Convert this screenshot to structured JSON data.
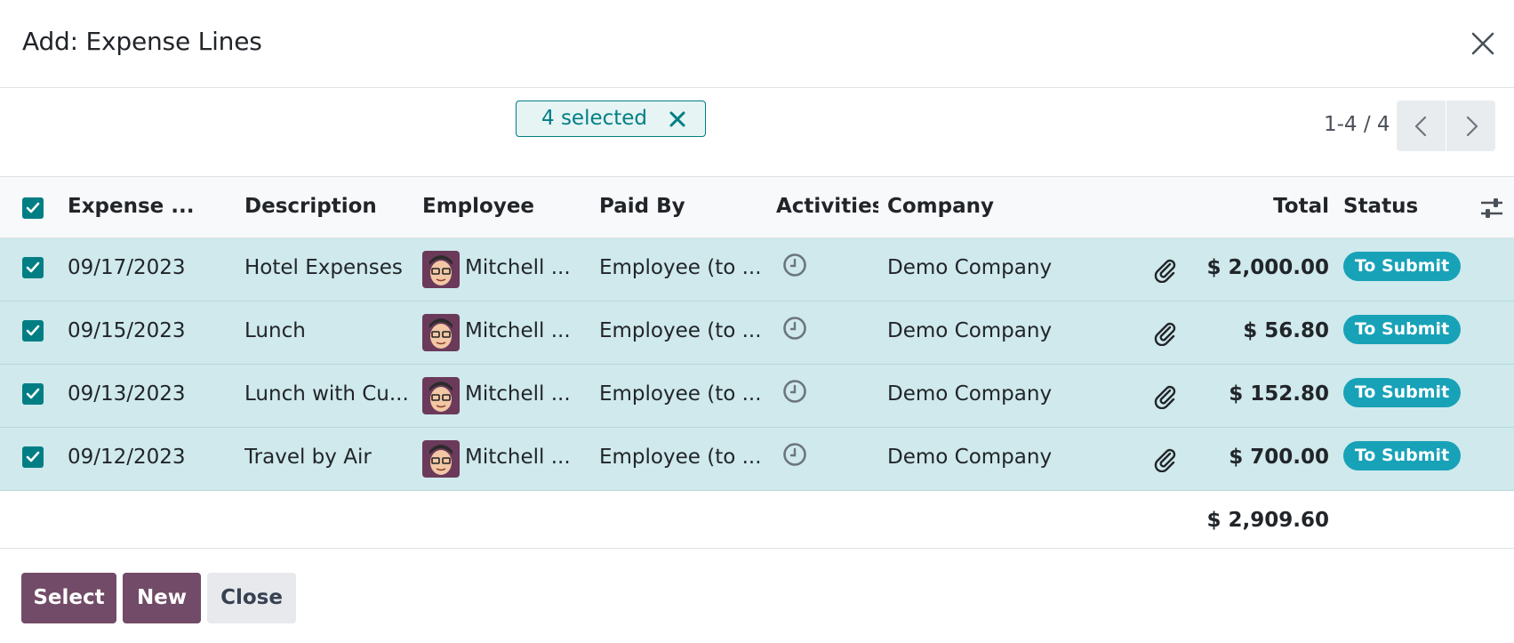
{
  "dialog": {
    "title": "Add: Expense Lines"
  },
  "selection": {
    "label": "4 selected"
  },
  "pager": {
    "value": "1-4 / 4"
  },
  "columns": {
    "date": "Expense ...",
    "description": "Description",
    "employee": "Employee",
    "paid_by": "Paid By",
    "activities": "Activities",
    "company": "Company",
    "total": "Total",
    "status": "Status"
  },
  "rows": [
    {
      "date": "09/17/2023",
      "description": "Hotel Expenses",
      "employee": "Mitchell ...",
      "paid_by": "Employee (to ...",
      "company": "Demo Company",
      "total": "$ 2,000.00",
      "status": "To Submit"
    },
    {
      "date": "09/15/2023",
      "description": "Lunch",
      "employee": "Mitchell ...",
      "paid_by": "Employee (to ...",
      "company": "Demo Company",
      "total": "$ 56.80",
      "status": "To Submit"
    },
    {
      "date": "09/13/2023",
      "description": "Lunch with Cu...",
      "employee": "Mitchell ...",
      "paid_by": "Employee (to ...",
      "company": "Demo Company",
      "total": "$ 152.80",
      "status": "To Submit"
    },
    {
      "date": "09/12/2023",
      "description": "Travel by Air",
      "employee": "Mitchell ...",
      "paid_by": "Employee (to ...",
      "company": "Demo Company",
      "total": "$ 700.00",
      "status": "To Submit"
    }
  ],
  "footer": {
    "grand_total": "$ 2,909.60"
  },
  "buttons": {
    "select": "Select",
    "new": "New",
    "close": "Close"
  },
  "colors": {
    "accent": "#017e84",
    "primary": "#714b67",
    "selected_row": "#cfe9ec",
    "status_badge": "#17a2b8"
  },
  "icons": {
    "close": "close-icon",
    "unselect": "x-icon",
    "prev": "chevron-left-icon",
    "next": "chevron-right-icon",
    "settings": "sliders-icon",
    "activity": "clock-icon",
    "attachment": "paperclip-icon"
  }
}
